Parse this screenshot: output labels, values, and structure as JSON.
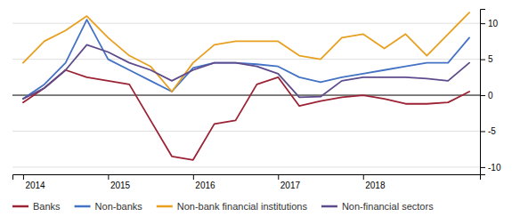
{
  "chart_data": {
    "type": "line",
    "categories": [
      "2014",
      null,
      null,
      null,
      "2015",
      null,
      null,
      null,
      "2016",
      null,
      null,
      null,
      "2017",
      null,
      null,
      null,
      "2018",
      null,
      null,
      null,
      null,
      null
    ],
    "series": [
      {
        "name": "Banks",
        "color": "#9b2335",
        "values": [
          -1.0,
          1.0,
          3.5,
          2.5,
          2.0,
          1.5,
          -3.5,
          -8.5,
          -9.0,
          -4.0,
          -3.5,
          1.5,
          2.5,
          -1.5,
          -0.8,
          -0.3,
          0.0,
          -0.5,
          -1.2,
          -1.2,
          -1.0,
          0.5
        ]
      },
      {
        "name": "Non-banks",
        "color": "#4472c4",
        "values": [
          -0.5,
          1.5,
          4.5,
          10.5,
          5.0,
          3.5,
          2.0,
          0.5,
          3.8,
          4.5,
          4.5,
          4.3,
          4.0,
          2.5,
          1.8,
          2.5,
          3.0,
          3.5,
          4.0,
          4.5,
          4.5,
          8.0
        ]
      },
      {
        "name": "Non-bank financial institutions",
        "color": "#e8a020",
        "values": [
          4.5,
          7.5,
          9.0,
          11.0,
          8.0,
          5.5,
          4.0,
          0.5,
          4.5,
          7.0,
          7.5,
          7.5,
          7.5,
          5.5,
          5.0,
          8.0,
          8.5,
          6.5,
          8.5,
          5.5,
          8.5,
          11.5
        ]
      },
      {
        "name": "Non-financial sectors",
        "color": "#5e4b8b",
        "values": [
          -0.5,
          1.0,
          3.5,
          7.0,
          6.0,
          4.5,
          3.5,
          2.0,
          3.5,
          4.5,
          4.5,
          4.0,
          3.0,
          -0.3,
          -0.2,
          2.0,
          2.5,
          2.5,
          2.5,
          2.3,
          2.0,
          4.5
        ]
      }
    ],
    "ylim": [
      -11,
      12
    ],
    "yticks": [
      -10,
      -5,
      0,
      5,
      10
    ],
    "grid": true,
    "legend": "bottom"
  }
}
